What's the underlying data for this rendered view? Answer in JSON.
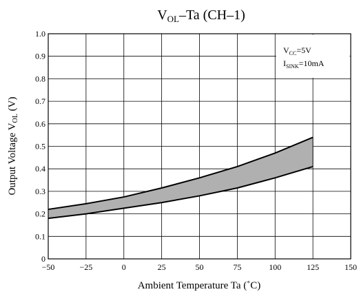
{
  "chart_data": {
    "type": "area",
    "title": {
      "main": "V",
      "sub": "OL",
      "rest": "–Ta (CH–1)"
    },
    "xlabel": "Ambient Temperature  Ta (˚C)",
    "ylabel": {
      "main": "Output Voltage  V",
      "sub": "OL",
      "suffix": " (V)"
    },
    "xlim": [
      -50,
      150
    ],
    "ylim": [
      0,
      1.0
    ],
    "x_ticks": [
      -50,
      -25,
      0,
      25,
      50,
      75,
      100,
      125,
      150
    ],
    "x_tick_labels": [
      "−50",
      "−25",
      "0",
      "25",
      "50",
      "75",
      "100",
      "125",
      "150"
    ],
    "y_ticks": [
      0,
      0.1,
      0.2,
      0.3,
      0.4,
      0.5,
      0.6,
      0.7,
      0.8,
      0.9,
      1.0
    ],
    "y_tick_labels": [
      "0",
      "0.1",
      "0.2",
      "0.3",
      "0.4",
      "0.5",
      "0.6",
      "0.7",
      "0.8",
      "0.9",
      "1.0"
    ],
    "grid": true,
    "band": {
      "x": [
        -50,
        -25,
        0,
        25,
        50,
        75,
        100,
        125
      ],
      "upper": [
        0.22,
        0.245,
        0.275,
        0.315,
        0.36,
        0.41,
        0.47,
        0.54
      ],
      "lower": [
        0.18,
        0.2,
        0.225,
        0.25,
        0.28,
        0.315,
        0.36,
        0.41
      ],
      "fill_color": "#b0b0b0",
      "line_color": "#000000"
    },
    "annotation": {
      "line1": {
        "main": "V",
        "sub": "CC",
        "rest": "=5V"
      },
      "line2": {
        "main": "I",
        "sub": "SINK",
        "rest": "=10mA"
      },
      "placement": "top-right"
    }
  }
}
